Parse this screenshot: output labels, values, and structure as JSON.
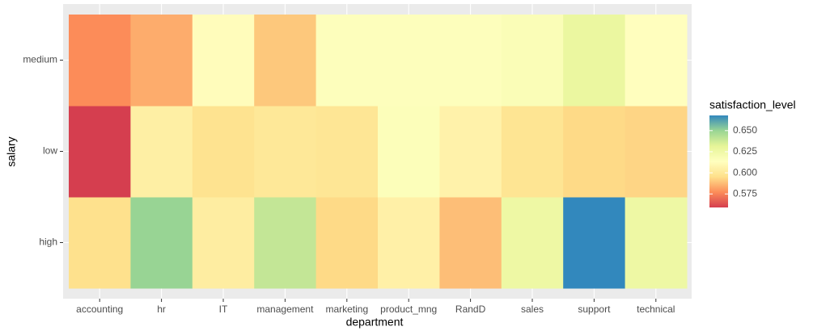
{
  "chart_data": {
    "type": "heatmap",
    "x_label": "department",
    "y_label": "salary",
    "x": [
      "accounting",
      "hr",
      "IT",
      "management",
      "marketing",
      "product_mng",
      "RandD",
      "sales",
      "support",
      "technical"
    ],
    "y": [
      "high",
      "low",
      "medium"
    ],
    "values": [
      [
        0.596,
        0.65,
        0.603,
        0.64,
        0.594,
        0.605,
        0.588,
        0.626,
        0.668,
        0.626
      ],
      [
        0.559,
        0.604,
        0.597,
        0.6,
        0.599,
        0.616,
        0.606,
        0.598,
        0.594,
        0.593
      ],
      [
        0.577,
        0.584,
        0.612,
        0.59,
        0.615,
        0.615,
        0.615,
        0.617,
        0.628,
        0.613
      ]
    ],
    "legend_title": "satisfaction_level",
    "clim": [
      0.559,
      0.668
    ],
    "cticks": [
      0.575,
      {
        "value": 0.6,
        "label": "0.600"
      },
      0.625,
      {
        "value": 0.65,
        "label": "0.650"
      }
    ],
    "colorscale": [
      "#d53e4f",
      "#fc8d59",
      "#fee08b",
      "#ffffbf",
      "#e6f598",
      "#99d594",
      "#3288bd"
    ],
    "panel_color": "#ebebeb",
    "grid": true
  }
}
